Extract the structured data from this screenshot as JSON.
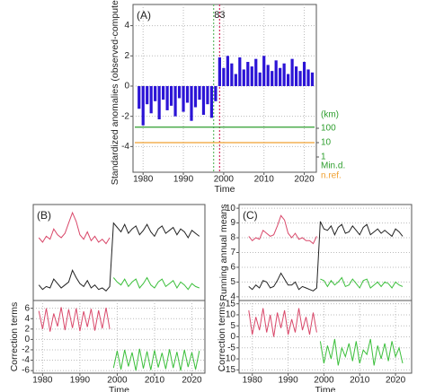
{
  "chart_data": [
    {
      "type": "bar",
      "title": "(A)",
      "ylabel": "Standardized anomalies (observed-computed)",
      "xlabel": "Time",
      "color": "#2b14d6",
      "grid": true,
      "x": [
        1979,
        1980,
        1981,
        1982,
        1983,
        1984,
        1985,
        1986,
        1987,
        1988,
        1989,
        1990,
        1991,
        1992,
        1993,
        1994,
        1995,
        1996,
        1997,
        1998,
        1999,
        2000,
        2001,
        2002,
        2003,
        2004,
        2005,
        2006,
        2007,
        2008,
        2009,
        2010,
        2011,
        2012,
        2013,
        2014,
        2015,
        2016,
        2017,
        2018,
        2019,
        2020,
        2021,
        2022
      ],
      "values": [
        -1.5,
        -2.6,
        -1.2,
        -1.8,
        -1.0,
        -2.2,
        -0.9,
        -1.6,
        -1.3,
        -2.0,
        -0.8,
        -1.7,
        -1.1,
        -2.3,
        -1.4,
        -0.9,
        -1.9,
        -1.2,
        -2.1,
        -1.0,
        1.9,
        1.2,
        2.0,
        1.5,
        0.8,
        1.9,
        1.1,
        1.6,
        1.3,
        1.8,
        0.9,
        2.0,
        1.4,
        1.0,
        1.7,
        1.2,
        1.5,
        0.8,
        1.8,
        1.3,
        1.0,
        1.6,
        1.1,
        0.9
      ],
      "xlim": [
        1977.5,
        2023
      ],
      "xticks": [
        1980,
        1990,
        2000,
        2010,
        2020
      ],
      "ylim": [
        -5.7,
        5.4
      ],
      "yticks": [
        -4,
        -2,
        0,
        2,
        4
      ],
      "vlines": [
        {
          "x": 1999,
          "color": "#d63b6b",
          "label": "83"
        },
        {
          "x": 1997.5,
          "color": "#6cc070"
        }
      ],
      "y2label": "(km)",
      "y2log": true,
      "y2lim": [
        0.0866,
        42000000000
      ],
      "y2ticks": [
        1,
        10,
        100
      ],
      "reference_lines": [
        {
          "name": "Min.d.",
          "value": 120,
          "color": "#2e9e2e"
        },
        {
          "name": "n.ref.",
          "value": 10,
          "color": "#f0a030"
        }
      ]
    },
    {
      "type": "line",
      "title": "(B)",
      "x": [
        1979,
        1980,
        1981,
        1982,
        1983,
        1984,
        1985,
        1986,
        1987,
        1988,
        1989,
        1990,
        1991,
        1992,
        1993,
        1994,
        1995,
        1996,
        1997,
        1998,
        1999,
        2000,
        2001,
        2002,
        2003,
        2004,
        2005,
        2006,
        2007,
        2008,
        2009,
        2010,
        2011,
        2012,
        2013,
        2014,
        2015,
        2016,
        2017,
        2018,
        2019,
        2020,
        2021,
        2022
      ],
      "xlim": [
        1977.5,
        2023.5
      ],
      "ylim": [
        3.75,
        10.25
      ],
      "series": [
        {
          "color": "#222222",
          "values": [
            4.8,
            4.5,
            4.7,
            4.6,
            5.2,
            4.9,
            4.6,
            4.8,
            5.0,
            5.8,
            5.3,
            4.9,
            4.7,
            5.1,
            4.6,
            4.8,
            4.5,
            4.6,
            4.4,
            4.7,
            9.0,
            8.7,
            8.4,
            8.9,
            8.3,
            8.6,
            8.8,
            8.2,
            8.5,
            8.9,
            8.4,
            8.1,
            8.6,
            8.8,
            8.3,
            8.5,
            8.7,
            8.2,
            8.6,
            8.4,
            8.0,
            8.5,
            8.3,
            8.1
          ]
        },
        {
          "color": "#d9486a",
          "values": [
            8.0,
            7.7,
            8.1,
            7.9,
            8.6,
            8.2,
            8.0,
            8.3,
            9.0,
            9.7,
            9.1,
            8.2,
            7.9,
            8.4,
            7.8,
            8.1,
            7.7,
            7.9,
            7.6,
            8.0,
            null,
            null,
            null,
            null,
            null,
            null,
            null,
            null,
            null,
            null,
            null,
            null,
            null,
            null,
            null,
            null,
            null,
            null,
            null,
            null,
            null,
            null,
            null,
            null
          ]
        },
        {
          "color": "#3bbf3b",
          "values": [
            null,
            null,
            null,
            null,
            null,
            null,
            null,
            null,
            null,
            null,
            null,
            null,
            null,
            null,
            null,
            null,
            null,
            null,
            null,
            null,
            5.3,
            5.0,
            4.8,
            5.2,
            4.7,
            5.0,
            5.2,
            4.6,
            4.9,
            5.3,
            4.8,
            4.6,
            5.0,
            5.2,
            4.7,
            4.9,
            5.1,
            4.6,
            5.0,
            4.8,
            4.5,
            4.9,
            4.7,
            4.6
          ]
        }
      ]
    },
    {
      "type": "line",
      "ylabel": "Correction terms",
      "xlabel": "Time",
      "grid": true,
      "x": [
        1979,
        1980,
        1981,
        1982,
        1983,
        1984,
        1985,
        1986,
        1987,
        1988,
        1989,
        1990,
        1991,
        1992,
        1993,
        1994,
        1995,
        1996,
        1997,
        1998,
        1999,
        2000,
        2001,
        2002,
        2003,
        2004,
        2005,
        2006,
        2007,
        2008,
        2009,
        2010,
        2011,
        2012,
        2013,
        2014,
        2015,
        2016,
        2017,
        2018,
        2019,
        2020,
        2021,
        2022
      ],
      "xlim": [
        1977.5,
        2023.5
      ],
      "xticks": [
        1980,
        1990,
        2000,
        2010,
        2020
      ],
      "ylim": [
        -6.5,
        7.5
      ],
      "yticks": [
        -6,
        -4,
        -2,
        0,
        2,
        4,
        6
      ],
      "series": [
        {
          "color": "#d9486a",
          "values": [
            5.5,
            2.0,
            6.0,
            1.5,
            5.0,
            2.5,
            6.2,
            1.8,
            5.8,
            2.2,
            6.0,
            1.6,
            5.4,
            2.4,
            5.9,
            1.7,
            5.6,
            2.1,
            6.1,
            2.0,
            null,
            null,
            null,
            null,
            null,
            null,
            null,
            null,
            null,
            null,
            null,
            null,
            null,
            null,
            null,
            null,
            null,
            null,
            null,
            null,
            null,
            null,
            null,
            null
          ]
        },
        {
          "color": "#3bbf3b",
          "values": [
            null,
            null,
            null,
            null,
            null,
            null,
            null,
            null,
            null,
            null,
            null,
            null,
            null,
            null,
            null,
            null,
            null,
            null,
            null,
            null,
            -5.5,
            -2.2,
            -5.8,
            -2.0,
            -5.2,
            -2.5,
            -6.0,
            -1.8,
            -5.6,
            -2.3,
            -5.9,
            -2.1,
            -5.4,
            -2.6,
            -5.7,
            -1.9,
            -5.5,
            -2.4,
            -6.0,
            -2.0,
            -5.3,
            -2.5,
            -5.8,
            -2.2
          ]
        }
      ]
    },
    {
      "type": "line",
      "title": "(C)",
      "ylabel": "Running annual means",
      "grid": true,
      "x": [
        1979,
        1980,
        1981,
        1982,
        1983,
        1984,
        1985,
        1986,
        1987,
        1988,
        1989,
        1990,
        1991,
        1992,
        1993,
        1994,
        1995,
        1996,
        1997,
        1998,
        1999,
        2000,
        2001,
        2002,
        2003,
        2004,
        2005,
        2006,
        2007,
        2008,
        2009,
        2010,
        2011,
        2012,
        2013,
        2014,
        2015,
        2016,
        2017,
        2018,
        2019,
        2020,
        2021,
        2022
      ],
      "xlim": [
        1976.3,
        2024.5
      ],
      "ylim": [
        3.75,
        10.25
      ],
      "yticks": [
        4,
        5,
        6,
        7,
        8,
        9,
        10
      ],
      "series": [
        {
          "color": "#222222",
          "values": [
            4.7,
            4.5,
            4.8,
            4.6,
            5.1,
            5.0,
            4.6,
            4.7,
            5.1,
            5.6,
            5.2,
            4.8,
            4.8,
            5.0,
            4.5,
            4.7,
            4.6,
            4.5,
            4.4,
            4.6,
            9.1,
            8.6,
            8.5,
            8.8,
            8.2,
            8.7,
            8.9,
            8.3,
            8.4,
            8.8,
            8.5,
            8.2,
            8.7,
            8.9,
            8.2,
            8.4,
            8.6,
            8.3,
            8.5,
            8.3,
            8.1,
            8.6,
            8.4,
            8.1
          ]
        },
        {
          "color": "#d9486a",
          "values": [
            8.1,
            7.8,
            8.0,
            7.9,
            8.5,
            8.3,
            8.1,
            8.2,
            8.8,
            9.5,
            9.2,
            8.3,
            8.0,
            8.3,
            7.9,
            8.0,
            7.8,
            7.8,
            7.6,
            8.1,
            null,
            null,
            null,
            null,
            null,
            null,
            null,
            null,
            null,
            null,
            null,
            null,
            null,
            null,
            null,
            null,
            null,
            null,
            null,
            null,
            null,
            null,
            null,
            null
          ]
        },
        {
          "color": "#3bbf3b",
          "values": [
            null,
            null,
            null,
            null,
            null,
            null,
            null,
            null,
            null,
            null,
            null,
            null,
            null,
            null,
            null,
            null,
            null,
            null,
            null,
            null,
            5.2,
            5.1,
            4.7,
            5.1,
            4.8,
            5.0,
            5.3,
            4.7,
            4.8,
            5.2,
            4.9,
            4.6,
            5.1,
            5.2,
            4.6,
            4.8,
            5.0,
            4.7,
            5.0,
            4.9,
            4.6,
            5.0,
            4.8,
            4.7
          ]
        }
      ]
    },
    {
      "type": "line",
      "ylabel": "Correction terms",
      "xlabel": "Time",
      "grid": true,
      "x": [
        1979,
        1980,
        1981,
        1982,
        1983,
        1984,
        1985,
        1986,
        1987,
        1988,
        1989,
        1990,
        1991,
        1992,
        1993,
        1994,
        1995,
        1996,
        1997,
        1998,
        1999,
        2000,
        2001,
        2002,
        2003,
        2004,
        2005,
        2006,
        2007,
        2008,
        2009,
        2010,
        2011,
        2012,
        2013,
        2014,
        2015,
        2016,
        2017,
        2018,
        2019,
        2020,
        2021,
        2022
      ],
      "xlim": [
        1976.3,
        2024.5
      ],
      "xticks": [
        1980,
        1990,
        2000,
        2010,
        2020
      ],
      "ylim": [
        -16.5,
        16.5
      ],
      "yticks": [
        -15,
        -10,
        -5,
        0,
        5,
        10,
        15
      ],
      "series": [
        {
          "color": "#d9486a",
          "values": [
            12,
            1,
            9,
            3,
            13,
            2,
            10,
            0,
            11,
            4,
            12,
            1,
            8,
            2,
            13,
            3,
            9,
            1,
            11,
            2,
            null,
            null,
            null,
            null,
            null,
            null,
            null,
            null,
            null,
            null,
            null,
            null,
            null,
            null,
            null,
            null,
            null,
            null,
            null,
            null,
            null,
            null,
            null,
            null
          ]
        },
        {
          "color": "#3bbf3b",
          "values": [
            null,
            null,
            null,
            null,
            null,
            null,
            null,
            null,
            null,
            null,
            null,
            null,
            null,
            null,
            null,
            null,
            null,
            null,
            null,
            null,
            -2,
            -12,
            -4,
            -10,
            -1,
            -13,
            -5,
            -9,
            -3,
            -11,
            -2,
            -12,
            -6,
            -8,
            -1,
            -13,
            -4,
            -10,
            -3,
            -11,
            -2,
            -9,
            -5,
            -12
          ]
        }
      ]
    }
  ]
}
